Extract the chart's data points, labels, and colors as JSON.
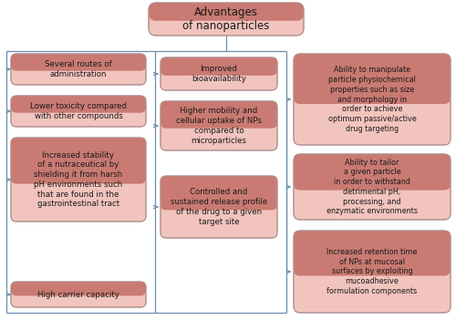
{
  "title": "Advantages\nof nanoparticles",
  "bg_color": "#ffffff",
  "box_fill_dark": "#c97a72",
  "box_fill_light": "#f2c4be",
  "box_border": "#b09090",
  "right_box_fill_dark": "#c97a72",
  "right_box_fill_light": "#f2c4be",
  "line_color": "#6a8faf",
  "arrow_color": "#6a8faf",
  "text_color": "#1a1a1a",
  "font_size": 6.2,
  "title_font_size": 8.5,
  "left_boxes": [
    "Several routes of\nadministration",
    "Lower toxicity compared\nwith other compounds",
    "Increased stability\nof a nutraceutical by\nshielding it from harsh\npH environments such\nthat are found in the\ngastrointestinal tract",
    "High carrier capacity"
  ],
  "middle_boxes": [
    "Improved\nbioavailability",
    "Higher mobility and\ncellular uptake of NPs\ncompared to\nmicroparticles",
    "Controlled and\nsustained release profile\nof the drug to a given\ntarget site"
  ],
  "right_boxes": [
    "Ability to manipulate\nparticle physiochemical\nproperties such as size\nand morphology in\norder to achieve\noptimum passive/active\ndrug targeting",
    "Ability to tailor\na given particle\nin order to withstand\ndetrimental pH,\nprocessing, and\nenzymatic environments",
    "Increased retention time\nof NPs at mucosal\nsurfaces by exploiting\nmucoadhesive\nformulation components"
  ]
}
